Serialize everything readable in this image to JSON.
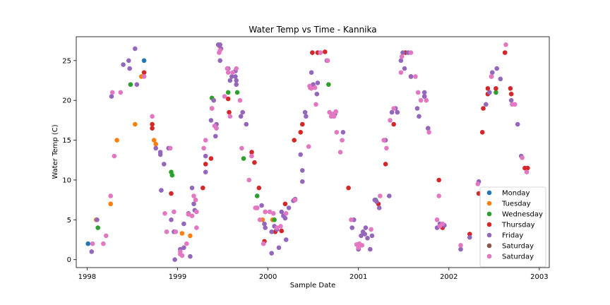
{
  "chart_data": {
    "type": "scatter",
    "title": "Water Temp vs Time - Kannika",
    "xlabel": "Sample Date",
    "ylabel": "Water Temp (C)",
    "x_ticks": [
      "1998",
      "1999",
      "2000",
      "2001",
      "2002",
      "2003"
    ],
    "x_tick_years": [
      1998,
      1999,
      2000,
      2001,
      2002,
      2003
    ],
    "xlim": [
      1997.88,
      2003.11
    ],
    "y_ticks": [
      0,
      5,
      10,
      15,
      20,
      25
    ],
    "ylim": [
      -1.0,
      28.0
    ],
    "grid": false,
    "legend_position": "bottom-right",
    "series": [
      {
        "name": "Monday",
        "color": "#1f77b4",
        "points": [
          [
            1998.01,
            2.0
          ],
          [
            1998.63,
            25.0
          ]
        ]
      },
      {
        "name": "Tuesday",
        "color": "#ff7f0e",
        "points": [
          [
            1998.1,
            5.0
          ],
          [
            1998.26,
            7.0
          ],
          [
            1998.33,
            15.0
          ],
          [
            1998.53,
            17.0
          ],
          [
            1998.6,
            23.0
          ],
          [
            1998.74,
            15.0
          ],
          [
            1998.76,
            14.5
          ],
          [
            1999.05,
            3.3
          ],
          [
            1999.14,
            3.0
          ],
          [
            1999.94,
            5.0
          ],
          [
            1999.97,
            6.0
          ],
          [
            2000.05,
            5.0
          ]
        ]
      },
      {
        "name": "Wednesday",
        "color": "#2ca02c",
        "points": [
          [
            1998.12,
            4.0
          ],
          [
            1998.48,
            22.0
          ],
          [
            1998.93,
            11.0
          ],
          [
            1998.94,
            10.6
          ],
          [
            1999.38,
            20.3
          ],
          [
            1999.56,
            21.0
          ],
          [
            1999.66,
            21.0
          ],
          [
            1999.73,
            12.7
          ],
          [
            1999.88,
            8.0
          ],
          [
            2000.07,
            5.0
          ],
          [
            2000.67,
            22.0
          ],
          [
            2001.19,
            7.5
          ],
          [
            2002.52,
            21.0
          ]
        ]
      },
      {
        "name": "Thursday",
        "color": "#d62728",
        "points": [
          [
            1998.63,
            23.5
          ],
          [
            1998.72,
            17.0
          ],
          [
            1998.72,
            16.5
          ],
          [
            1998.93,
            8.3
          ],
          [
            1999.28,
            9.0
          ],
          [
            1999.31,
            12.0
          ],
          [
            1999.37,
            12.7
          ],
          [
            1999.38,
            19.0
          ],
          [
            1999.46,
            26.9
          ],
          [
            1999.56,
            20.2
          ],
          [
            1999.57,
            18.5
          ],
          [
            1999.82,
            13.5
          ],
          [
            1999.85,
            12.2
          ],
          [
            1999.9,
            9.0
          ],
          [
            1999.96,
            2.3
          ],
          [
            2000.08,
            3.5
          ],
          [
            2000.15,
            3.6
          ],
          [
            2000.19,
            7.0
          ],
          [
            2000.29,
            15.0
          ],
          [
            2000.36,
            16.0
          ],
          [
            2000.38,
            17.0
          ],
          [
            2000.47,
            21.6
          ],
          [
            2000.49,
            26.0
          ],
          [
            2000.55,
            26.0
          ],
          [
            2000.63,
            26.1
          ],
          [
            2000.89,
            9.0
          ],
          [
            2001.22,
            7.0
          ],
          [
            2001.3,
            12.0
          ],
          [
            2001.39,
            17.0
          ],
          [
            2001.52,
            26.0
          ],
          [
            2001.58,
            23.0
          ],
          [
            2001.73,
            20.5
          ],
          [
            2001.77,
            16.5
          ],
          [
            2001.89,
            10.0
          ],
          [
            2001.93,
            4.0
          ],
          [
            2002.23,
            3.2
          ],
          [
            2002.33,
            8.3
          ],
          [
            2002.37,
            16.0
          ],
          [
            2002.38,
            19.0
          ],
          [
            2002.43,
            20.8
          ],
          [
            2002.43,
            21.5
          ],
          [
            2002.47,
            23.0
          ],
          [
            2002.52,
            21.5
          ],
          [
            2002.62,
            26.0
          ],
          [
            2002.68,
            21.5
          ],
          [
            2002.69,
            20.8
          ],
          [
            2002.84,
            11.5
          ],
          [
            2002.87,
            11.5
          ]
        ]
      },
      {
        "name": "Friday",
        "color": "#9467bd",
        "points": [
          [
            1998.05,
            1.0
          ],
          [
            1998.11,
            5.0
          ],
          [
            1998.27,
            20.5
          ],
          [
            1998.4,
            24.5
          ],
          [
            1998.46,
            25.0
          ],
          [
            1998.47,
            24.0
          ],
          [
            1998.53,
            26.5
          ],
          [
            1998.55,
            22.0
          ],
          [
            1998.76,
            14.0
          ],
          [
            1998.81,
            13.5
          ],
          [
            1998.81,
            13.2
          ],
          [
            1998.82,
            8.7
          ],
          [
            1998.85,
            12.0
          ],
          [
            1998.9,
            14.0
          ],
          [
            1998.93,
            5.0
          ],
          [
            1998.96,
            3.5
          ],
          [
            1998.97,
            0.0
          ],
          [
            1999.03,
            1.3
          ],
          [
            1999.07,
            4.5
          ],
          [
            1999.07,
            1.5
          ],
          [
            1999.12,
            5.8
          ],
          [
            1999.14,
            0.4
          ],
          [
            1999.16,
            9.0
          ],
          [
            1999.18,
            7.0
          ],
          [
            1999.19,
            6.2
          ],
          [
            1999.31,
            13.0
          ],
          [
            1999.31,
            11.0
          ],
          [
            1999.37,
            17.5
          ],
          [
            1999.4,
            20.0
          ],
          [
            1999.42,
            15.5
          ],
          [
            1999.43,
            17.0
          ],
          [
            1999.45,
            27.0
          ],
          [
            1999.47,
            27.0
          ],
          [
            1999.48,
            26.5
          ],
          [
            1999.47,
            25.0
          ],
          [
            1999.56,
            24.0
          ],
          [
            1999.58,
            22.5
          ],
          [
            1999.6,
            23.0
          ],
          [
            1999.64,
            23.7
          ],
          [
            1999.64,
            23.0
          ],
          [
            1999.65,
            22.5
          ],
          [
            1999.65,
            22.0
          ],
          [
            1999.7,
            18.0
          ],
          [
            1999.72,
            18.5
          ],
          [
            1999.76,
            17.0
          ],
          [
            1999.88,
            6.5
          ],
          [
            1999.93,
            6.8
          ],
          [
            1999.96,
            4.5
          ],
          [
            1999.97,
            4.0
          ],
          [
            2000.04,
            3.5
          ],
          [
            2000.04,
            0.8
          ],
          [
            2000.07,
            4.2
          ],
          [
            2000.1,
            3.8
          ],
          [
            2000.12,
            1.5
          ],
          [
            2000.15,
            6.0
          ],
          [
            2000.17,
            5.5
          ],
          [
            2000.19,
            5.2
          ],
          [
            2000.2,
            2.5
          ],
          [
            2000.23,
            6.5
          ],
          [
            2000.28,
            7.4
          ],
          [
            2000.3,
            7.6
          ],
          [
            2000.36,
            13.2
          ],
          [
            2000.38,
            9.8
          ],
          [
            2000.38,
            11.2
          ],
          [
            2000.41,
            18.5
          ],
          [
            2000.42,
            18.0
          ],
          [
            2000.48,
            23.5
          ],
          [
            2000.5,
            22.0
          ],
          [
            2000.54,
            20.8
          ],
          [
            2000.55,
            22.2
          ],
          [
            2000.65,
            25.0
          ],
          [
            2000.7,
            18.0
          ],
          [
            2000.74,
            18.3
          ],
          [
            2000.83,
            16.0
          ],
          [
            2000.93,
            4.0
          ],
          [
            2000.95,
            5.0
          ],
          [
            2001.0,
            1.3
          ],
          [
            2001.03,
            3.0
          ],
          [
            2001.05,
            3.5
          ],
          [
            2001.07,
            3.2
          ],
          [
            2001.08,
            4.0
          ],
          [
            2001.1,
            2.7
          ],
          [
            2001.13,
            1.3
          ],
          [
            2001.15,
            3.0
          ],
          [
            2001.18,
            7.5
          ],
          [
            2001.2,
            7.3
          ],
          [
            2001.23,
            6.5
          ],
          [
            2001.3,
            15.0
          ],
          [
            2001.34,
            8.0
          ],
          [
            2001.37,
            18.5
          ],
          [
            2001.41,
            19.0
          ],
          [
            2001.43,
            18.5
          ],
          [
            2001.47,
            25.0
          ],
          [
            2001.49,
            26.0
          ],
          [
            2001.51,
            24.0
          ],
          [
            2001.55,
            26.0
          ],
          [
            2001.58,
            23.0
          ],
          [
            2001.65,
            19.0
          ],
          [
            2001.67,
            18.0
          ],
          [
            2001.73,
            21.0
          ],
          [
            2001.73,
            20.5
          ],
          [
            2001.77,
            16.5
          ],
          [
            2001.87,
            4.0
          ],
          [
            2001.9,
            4.5
          ],
          [
            2001.95,
            4.3
          ],
          [
            2002.13,
            1.3
          ],
          [
            2002.23,
            2.8
          ],
          [
            2002.33,
            9.8
          ],
          [
            2002.41,
            19.5
          ],
          [
            2002.45,
            21.0
          ],
          [
            2002.48,
            23.5
          ],
          [
            2002.53,
            24.0
          ],
          [
            2002.57,
            22.7
          ],
          [
            2002.69,
            20.0
          ],
          [
            2002.7,
            19.5
          ],
          [
            2002.76,
            17.0
          ],
          [
            2002.8,
            13.0
          ]
        ]
      },
      {
        "name": "Saturday",
        "color": "#8c564b",
        "points": []
      },
      {
        "name": "Saturday",
        "color": "#e377c2",
        "points": [
          [
            1998.06,
            2.0
          ],
          [
            1998.18,
            2.0
          ],
          [
            1998.21,
            3.0
          ],
          [
            1998.26,
            8.0
          ],
          [
            1998.28,
            21.0
          ],
          [
            1998.3,
            13.0
          ],
          [
            1998.37,
            21.0
          ],
          [
            1998.63,
            23.0
          ],
          [
            1998.72,
            18.0
          ],
          [
            1998.86,
            5.8
          ],
          [
            1998.88,
            3.5
          ],
          [
            1998.92,
            14.0
          ],
          [
            1998.96,
            6.0
          ],
          [
            1998.98,
            3.5
          ],
          [
            1999.03,
            1.0
          ],
          [
            1999.03,
            0.7
          ],
          [
            1999.05,
            0.5
          ],
          [
            1999.1,
            2.0
          ],
          [
            1999.12,
            5.7
          ],
          [
            1999.16,
            5.5
          ],
          [
            1999.18,
            8.0
          ],
          [
            1999.2,
            7.5
          ],
          [
            1999.21,
            6.0
          ],
          [
            1999.21,
            4.0
          ],
          [
            1999.29,
            14.0
          ],
          [
            1999.31,
            15.0
          ],
          [
            1999.38,
            19.0
          ],
          [
            1999.41,
            16.8
          ],
          [
            1999.43,
            16.5
          ],
          [
            1999.46,
            26.0
          ],
          [
            1999.47,
            26.3
          ],
          [
            1999.52,
            20.5
          ],
          [
            1999.55,
            24.0
          ],
          [
            1999.56,
            23.5
          ],
          [
            1999.58,
            18.0
          ],
          [
            1999.61,
            23.5
          ],
          [
            1999.65,
            24.0
          ],
          [
            1999.69,
            20.0
          ],
          [
            1999.71,
            14.0
          ],
          [
            1999.79,
            10.0
          ],
          [
            1999.82,
            13.0
          ],
          [
            1999.86,
            6.5
          ],
          [
            1999.88,
            6.5
          ],
          [
            1999.91,
            5.0
          ],
          [
            1999.95,
            2.0
          ],
          [
            1999.97,
            6.0
          ],
          [
            2000.02,
            6.0
          ],
          [
            2000.06,
            5.8
          ],
          [
            2000.1,
            4.0
          ],
          [
            2000.14,
            4.2
          ],
          [
            2000.2,
            5.8
          ],
          [
            2000.3,
            7.5
          ],
          [
            2000.45,
            14.2
          ],
          [
            2000.46,
            21.8
          ],
          [
            2000.48,
            21.5
          ],
          [
            2000.52,
            21.6
          ],
          [
            2000.53,
            19.5
          ],
          [
            2000.58,
            26.0
          ],
          [
            2000.66,
            25.0
          ],
          [
            2000.68,
            18.5
          ],
          [
            2000.7,
            18.0
          ],
          [
            2000.72,
            18.3
          ],
          [
            2000.73,
            18.0
          ],
          [
            2000.75,
            18.6
          ],
          [
            2000.76,
            16.0
          ],
          [
            2000.8,
            13.5
          ],
          [
            2000.82,
            15.0
          ],
          [
            2000.92,
            5.0
          ],
          [
            2000.98,
            1.9
          ],
          [
            2001.0,
            1.5
          ],
          [
            2001.01,
            2.0
          ],
          [
            2001.04,
            1.8
          ],
          [
            2001.14,
            3.8
          ],
          [
            2001.24,
            8.0
          ],
          [
            2001.28,
            15.0
          ],
          [
            2001.31,
            14.0
          ],
          [
            2001.35,
            17.5
          ],
          [
            2001.39,
            19.0
          ],
          [
            2001.47,
            23.5
          ],
          [
            2001.48,
            25.5
          ],
          [
            2001.58,
            26.0
          ],
          [
            2001.63,
            23.0
          ],
          [
            2001.66,
            21.0
          ],
          [
            2001.69,
            20.0
          ],
          [
            2001.75,
            20.0
          ],
          [
            2001.78,
            16.0
          ],
          [
            2001.87,
            5.0
          ],
          [
            2001.89,
            8.0
          ],
          [
            2001.9,
            4.2
          ],
          [
            2001.93,
            4.5
          ],
          [
            2002.13,
            1.8
          ],
          [
            2002.32,
            9.5
          ],
          [
            2002.47,
            23.0
          ],
          [
            2002.63,
            27.0
          ],
          [
            2002.7,
            19.5
          ],
          [
            2002.73,
            19.5
          ],
          [
            2002.81,
            12.8
          ],
          [
            2002.86,
            11.0
          ]
        ]
      }
    ]
  }
}
